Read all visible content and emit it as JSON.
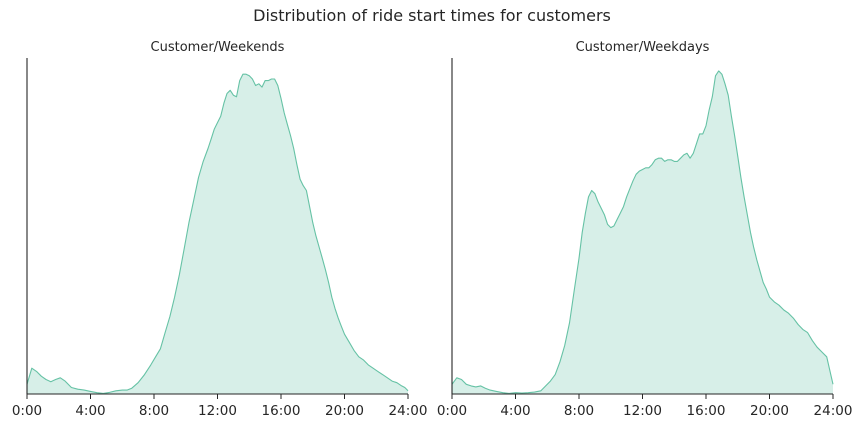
{
  "title": "Distribution of ride start times for customers",
  "colors": {
    "accent": "#66c2a5",
    "axis": "#262626"
  },
  "chart_data": [
    {
      "type": "area",
      "title": "Customer/Weekends",
      "xlabel": "",
      "ylabel": "",
      "xlim": [
        0,
        24
      ],
      "ylim": [
        0,
        1.04
      ],
      "xticks": [
        0,
        4,
        8,
        12,
        16,
        20,
        24
      ],
      "xtick_labels": [
        "0:00",
        "4:00",
        "8:00",
        "12:00",
        "16:00",
        "20:00",
        "24:00"
      ],
      "grid": false,
      "series": [
        {
          "x": [
            0.0,
            0.3,
            0.6,
            0.9,
            1.2,
            1.5,
            1.8,
            2.1,
            2.4,
            2.8,
            3.2,
            3.6,
            4.0,
            4.4,
            4.8,
            5.2,
            5.6,
            6.0,
            6.3,
            6.6,
            7.0,
            7.4,
            7.8,
            8.1,
            8.4,
            8.7,
            9.0,
            9.3,
            9.6,
            9.9,
            10.2,
            10.5,
            10.8,
            11.1,
            11.4,
            11.6,
            11.8,
            12.0,
            12.2,
            12.4,
            12.6,
            12.8,
            13.0,
            13.2,
            13.4,
            13.6,
            13.8,
            14.0,
            14.2,
            14.4,
            14.6,
            14.8,
            15.0,
            15.2,
            15.4,
            15.6,
            15.8,
            16.0,
            16.2,
            16.4,
            16.6,
            16.8,
            17.0,
            17.2,
            17.4,
            17.6,
            17.8,
            18.0,
            18.2,
            18.4,
            18.6,
            18.8,
            19.0,
            19.2,
            19.4,
            19.6,
            19.8,
            20.0,
            20.3,
            20.6,
            20.9,
            21.2,
            21.5,
            21.8,
            22.1,
            22.4,
            22.7,
            23.0,
            23.3,
            23.6,
            23.8,
            24.0
          ],
          "y": [
            0.03,
            0.08,
            0.07,
            0.055,
            0.045,
            0.038,
            0.045,
            0.05,
            0.04,
            0.02,
            0.015,
            0.012,
            0.008,
            0.004,
            0.002,
            0.005,
            0.01,
            0.012,
            0.012,
            0.018,
            0.035,
            0.06,
            0.09,
            0.115,
            0.14,
            0.19,
            0.24,
            0.3,
            0.37,
            0.45,
            0.53,
            0.6,
            0.67,
            0.72,
            0.76,
            0.79,
            0.82,
            0.84,
            0.86,
            0.9,
            0.93,
            0.94,
            0.925,
            0.92,
            0.97,
            0.99,
            0.99,
            0.985,
            0.975,
            0.955,
            0.96,
            0.95,
            0.97,
            0.97,
            0.975,
            0.975,
            0.955,
            0.915,
            0.87,
            0.835,
            0.8,
            0.76,
            0.71,
            0.665,
            0.645,
            0.63,
            0.58,
            0.53,
            0.49,
            0.455,
            0.42,
            0.385,
            0.345,
            0.3,
            0.265,
            0.235,
            0.21,
            0.185,
            0.16,
            0.135,
            0.115,
            0.105,
            0.09,
            0.08,
            0.07,
            0.06,
            0.05,
            0.04,
            0.035,
            0.025,
            0.02,
            0.01
          ]
        }
      ]
    },
    {
      "type": "area",
      "title": "Customer/Weekdays",
      "xlabel": "",
      "ylabel": "",
      "xlim": [
        0,
        24
      ],
      "ylim": [
        0,
        1.04
      ],
      "xticks": [
        0,
        4,
        8,
        12,
        16,
        20,
        24
      ],
      "xtick_labels": [
        "0:00",
        "4:00",
        "8:00",
        "12:00",
        "16:00",
        "20:00",
        "24:00"
      ],
      "grid": false,
      "series": [
        {
          "x": [
            0.0,
            0.3,
            0.6,
            0.9,
            1.2,
            1.5,
            1.8,
            2.1,
            2.4,
            2.8,
            3.2,
            3.6,
            4.0,
            4.4,
            4.8,
            5.2,
            5.6,
            5.9,
            6.2,
            6.5,
            6.8,
            7.1,
            7.4,
            7.7,
            8.0,
            8.2,
            8.4,
            8.6,
            8.8,
            9.0,
            9.2,
            9.4,
            9.6,
            9.8,
            10.0,
            10.2,
            10.4,
            10.6,
            10.8,
            11.0,
            11.2,
            11.4,
            11.6,
            11.8,
            12.0,
            12.2,
            12.4,
            12.6,
            12.8,
            13.0,
            13.2,
            13.4,
            13.6,
            13.8,
            14.0,
            14.2,
            14.4,
            14.6,
            14.8,
            15.0,
            15.2,
            15.4,
            15.6,
            15.8,
            16.0,
            16.2,
            16.4,
            16.6,
            16.8,
            17.0,
            17.2,
            17.4,
            17.6,
            17.8,
            18.0,
            18.2,
            18.4,
            18.6,
            18.8,
            19.0,
            19.2,
            19.4,
            19.6,
            19.8,
            20.0,
            20.3,
            20.6,
            20.9,
            21.2,
            21.5,
            21.8,
            22.1,
            22.4,
            22.7,
            23.0,
            23.3,
            23.6,
            24.0
          ],
          "y": [
            0.03,
            0.05,
            0.045,
            0.03,
            0.025,
            0.022,
            0.025,
            0.018,
            0.012,
            0.008,
            0.004,
            0.002,
            0.004,
            0.003,
            0.004,
            0.006,
            0.01,
            0.025,
            0.04,
            0.06,
            0.1,
            0.15,
            0.22,
            0.32,
            0.42,
            0.5,
            0.56,
            0.61,
            0.63,
            0.62,
            0.595,
            0.575,
            0.555,
            0.525,
            0.515,
            0.52,
            0.54,
            0.56,
            0.58,
            0.61,
            0.635,
            0.66,
            0.68,
            0.69,
            0.695,
            0.7,
            0.7,
            0.71,
            0.725,
            0.73,
            0.73,
            0.72,
            0.725,
            0.725,
            0.72,
            0.72,
            0.73,
            0.74,
            0.745,
            0.73,
            0.745,
            0.775,
            0.805,
            0.805,
            0.83,
            0.88,
            0.92,
            0.985,
            1.0,
            0.99,
            0.96,
            0.925,
            0.86,
            0.8,
            0.735,
            0.67,
            0.61,
            0.555,
            0.5,
            0.455,
            0.415,
            0.38,
            0.345,
            0.325,
            0.3,
            0.285,
            0.275,
            0.26,
            0.25,
            0.235,
            0.215,
            0.2,
            0.19,
            0.165,
            0.145,
            0.13,
            0.115,
            0.03
          ]
        }
      ]
    }
  ]
}
